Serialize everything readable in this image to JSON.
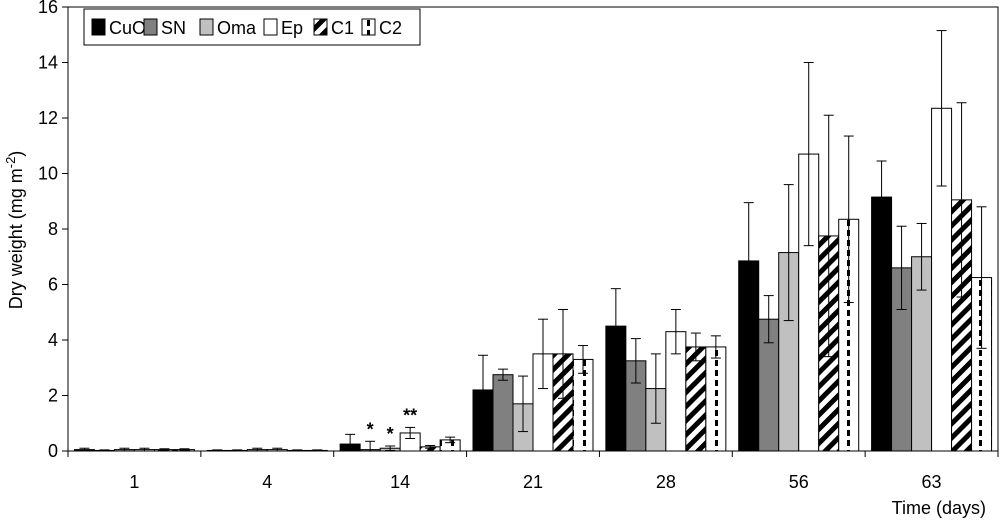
{
  "chart_data": {
    "type": "bar",
    "title": "",
    "xlabel": "Time (days)",
    "ylabel": "Dry weight (mg m",
    "ylabel_sup": "-2",
    "ylabel_close": ")",
    "ylim": [
      0,
      16
    ],
    "yticks": [
      "0",
      "2",
      "4",
      "6",
      "8",
      "10",
      "12",
      "14",
      "16"
    ],
    "categories": [
      "1",
      "4",
      "14",
      "21",
      "28",
      "56",
      "63"
    ],
    "grid": false,
    "legend_position": "top-left",
    "series": [
      {
        "name": "CuO",
        "fill": "#000000",
        "pattern": "solid",
        "values": [
          0.05,
          0.02,
          0.25,
          2.2,
          4.5,
          6.85,
          9.15
        ],
        "errors": [
          0.05,
          0.02,
          0.35,
          1.25,
          1.35,
          2.1,
          1.3
        ]
      },
      {
        "name": "SN",
        "fill": "#808080",
        "pattern": "solid",
        "values": [
          0.02,
          0.02,
          0.05,
          2.75,
          3.25,
          4.75,
          6.6
        ],
        "errors": [
          0.02,
          0.02,
          0.3,
          0.2,
          0.8,
          0.85,
          1.5
        ]
      },
      {
        "name": "Oma",
        "fill": "#c0c0c0",
        "pattern": "solid",
        "values": [
          0.05,
          0.05,
          0.1,
          1.7,
          2.25,
          7.15,
          7.0
        ],
        "errors": [
          0.05,
          0.05,
          0.08,
          1.0,
          1.25,
          2.45,
          1.2
        ]
      },
      {
        "name": "Ep",
        "fill": "#ffffff",
        "pattern": "solid",
        "values": [
          0.05,
          0.05,
          0.65,
          3.5,
          4.3,
          10.7,
          12.35
        ],
        "errors": [
          0.05,
          0.05,
          0.2,
          1.25,
          0.8,
          3.3,
          2.8
        ]
      },
      {
        "name": "C1",
        "fill": "#ffffff",
        "pattern": "diagonal",
        "values": [
          0.05,
          0.02,
          0.15,
          3.5,
          3.75,
          7.75,
          9.05
        ],
        "errors": [
          0.03,
          0.02,
          0.05,
          1.6,
          0.5,
          4.35,
          3.5
        ]
      },
      {
        "name": "C2",
        "fill": "#ffffff",
        "pattern": "dashed",
        "values": [
          0.05,
          0.02,
          0.4,
          3.3,
          3.75,
          8.35,
          6.25
        ],
        "errors": [
          0.03,
          0.02,
          0.1,
          0.5,
          0.4,
          3.0,
          2.55
        ]
      }
    ],
    "annotations": [
      {
        "category": "14",
        "series": "SN",
        "text": "*"
      },
      {
        "category": "14",
        "series": "Oma",
        "text": "*"
      },
      {
        "category": "14",
        "series": "Ep",
        "text": "**"
      }
    ]
  }
}
